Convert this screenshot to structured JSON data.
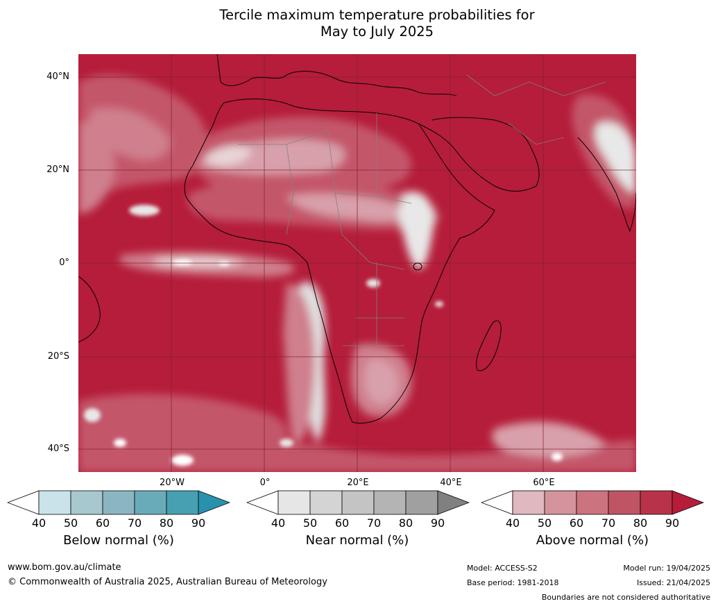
{
  "title": {
    "line1": "Tercile maximum temperature probabilities for",
    "line2": "May to July 2025"
  },
  "map": {
    "background_color": "#b51d3a",
    "grid_color": "#7a2030",
    "coast_color": "#000000",
    "border_color": "#808080",
    "lat_labels": [
      "40°N",
      "20°N",
      "0°",
      "20°S",
      "40°S"
    ],
    "lon_labels": [
      "20°W",
      "0°",
      "20°E",
      "40°E",
      "60°E"
    ]
  },
  "legends": [
    {
      "label": "Below normal (%)",
      "ticks": [
        "40",
        "50",
        "60",
        "70",
        "80",
        "90"
      ],
      "colors": [
        "#ffffff",
        "#cae3ea",
        "#a8c8cf",
        "#8ab6c1",
        "#6aabb9",
        "#46a0b1",
        "#2a91ad"
      ]
    },
    {
      "label": "Near normal (%)",
      "ticks": [
        "40",
        "50",
        "60",
        "70",
        "80",
        "90"
      ],
      "colors": [
        "#ffffff",
        "#e6e6e6",
        "#d4d4d4",
        "#c4c4c4",
        "#b4b4b4",
        "#a0a0a0",
        "#808080"
      ]
    },
    {
      "label": "Above normal (%)",
      "ticks": [
        "40",
        "50",
        "60",
        "70",
        "80",
        "90"
      ],
      "colors": [
        "#ffffff",
        "#e0b8bf",
        "#d4939d",
        "#cb737e",
        "#bf5465",
        "#b83349",
        "#b51d3a"
      ]
    }
  ],
  "footer": {
    "url": "www.bom.gov.au/climate",
    "copyright": "© Commonwealth of Australia 2025, Australian Bureau of Meteorology",
    "model": "Model: ACCESS-S2",
    "base_period": "Base period: 1981-2018",
    "model_run": "Model run: 19/04/2025",
    "issued": "Issued: 21/04/2025",
    "disclaimer": "Boundaries are not considered authoritative"
  }
}
